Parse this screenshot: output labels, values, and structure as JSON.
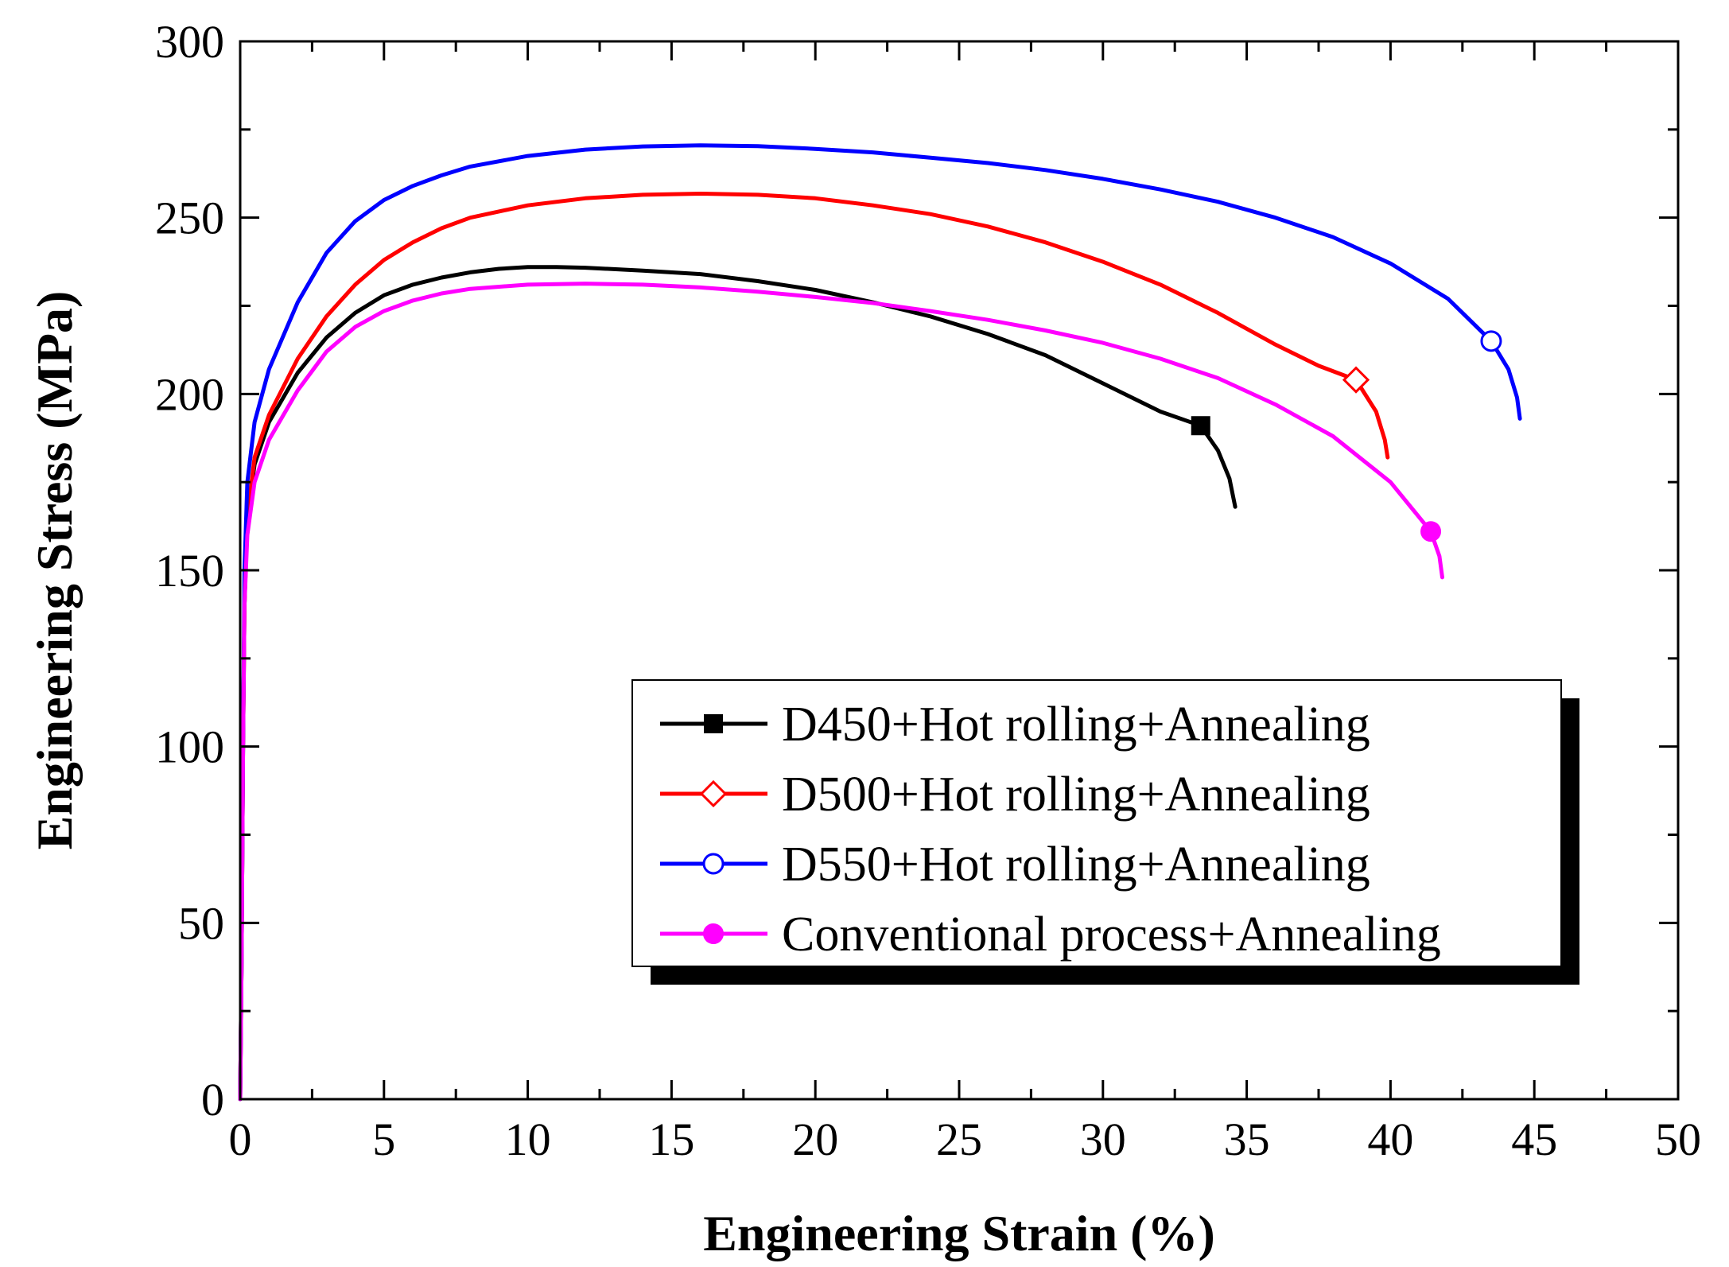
{
  "chart_data": {
    "type": "line",
    "title": "",
    "xlabel": "Engineering Strain (%)",
    "ylabel": "Engineering Stress (MPa)",
    "xlim": [
      0,
      50
    ],
    "ylim": [
      0,
      300
    ],
    "xticks": [
      0,
      5,
      10,
      15,
      20,
      25,
      30,
      35,
      40,
      45,
      50
    ],
    "yticks": [
      0,
      50,
      100,
      150,
      200,
      250,
      300
    ],
    "grid": false,
    "legend_position": "lower-right",
    "series": [
      {
        "name": "D450+Hot rolling+Annealing",
        "color": "#000000",
        "marker": "filled-square",
        "marker_point": [
          33.4,
          191
        ],
        "points": [
          [
            0,
            0
          ],
          [
            0.05,
            40
          ],
          [
            0.1,
            100
          ],
          [
            0.15,
            140
          ],
          [
            0.25,
            165
          ],
          [
            0.5,
            180
          ],
          [
            1,
            192
          ],
          [
            2,
            206
          ],
          [
            3,
            216
          ],
          [
            4,
            223
          ],
          [
            5,
            228
          ],
          [
            6,
            231
          ],
          [
            7,
            233
          ],
          [
            8,
            234.5
          ],
          [
            9,
            235.5
          ],
          [
            10,
            236
          ],
          [
            11,
            236
          ],
          [
            12,
            235.8
          ],
          [
            14,
            235
          ],
          [
            16,
            234
          ],
          [
            18,
            232
          ],
          [
            20,
            229.5
          ],
          [
            22,
            226
          ],
          [
            24,
            222
          ],
          [
            26,
            217
          ],
          [
            28,
            211
          ],
          [
            30,
            203
          ],
          [
            32,
            195
          ],
          [
            33.4,
            191
          ],
          [
            34,
            184
          ],
          [
            34.4,
            176
          ],
          [
            34.6,
            168
          ]
        ]
      },
      {
        "name": "D500+Hot rolling+Annealing",
        "color": "#ff0000",
        "marker": "open-diamond",
        "marker_point": [
          38.8,
          204
        ],
        "points": [
          [
            0,
            0
          ],
          [
            0.05,
            40
          ],
          [
            0.1,
            100
          ],
          [
            0.15,
            140
          ],
          [
            0.25,
            165
          ],
          [
            0.5,
            182
          ],
          [
            1,
            194
          ],
          [
            2,
            210
          ],
          [
            3,
            222
          ],
          [
            4,
            231
          ],
          [
            5,
            238
          ],
          [
            6,
            243
          ],
          [
            7,
            247
          ],
          [
            8,
            250
          ],
          [
            10,
            253.5
          ],
          [
            12,
            255.5
          ],
          [
            14,
            256.5
          ],
          [
            16,
            256.8
          ],
          [
            18,
            256.5
          ],
          [
            20,
            255.5
          ],
          [
            22,
            253.5
          ],
          [
            24,
            251
          ],
          [
            26,
            247.5
          ],
          [
            28,
            243
          ],
          [
            30,
            237.5
          ],
          [
            32,
            231
          ],
          [
            34,
            223
          ],
          [
            36,
            214
          ],
          [
            37.5,
            208
          ],
          [
            38.8,
            204
          ],
          [
            39.5,
            195
          ],
          [
            39.8,
            187
          ],
          [
            39.9,
            182
          ]
        ]
      },
      {
        "name": "D550+Hot rolling+Annealing",
        "color": "#0000ff",
        "marker": "open-circle",
        "marker_point": [
          43.5,
          215
        ],
        "points": [
          [
            0,
            0
          ],
          [
            0.05,
            40
          ],
          [
            0.1,
            100
          ],
          [
            0.15,
            150
          ],
          [
            0.25,
            175
          ],
          [
            0.5,
            192
          ],
          [
            1,
            207
          ],
          [
            2,
            226
          ],
          [
            3,
            240
          ],
          [
            4,
            249
          ],
          [
            5,
            255
          ],
          [
            6,
            259
          ],
          [
            7,
            262
          ],
          [
            8,
            264.5
          ],
          [
            10,
            267.5
          ],
          [
            12,
            269.3
          ],
          [
            14,
            270.2
          ],
          [
            16,
            270.5
          ],
          [
            18,
            270.3
          ],
          [
            20,
            269.5
          ],
          [
            22,
            268.5
          ],
          [
            24,
            267
          ],
          [
            26,
            265.5
          ],
          [
            28,
            263.5
          ],
          [
            30,
            261
          ],
          [
            32,
            258
          ],
          [
            34,
            254.5
          ],
          [
            36,
            250
          ],
          [
            38,
            244.5
          ],
          [
            40,
            237
          ],
          [
            42,
            227
          ],
          [
            43.5,
            215
          ],
          [
            44.1,
            207
          ],
          [
            44.4,
            199
          ],
          [
            44.5,
            193
          ]
        ]
      },
      {
        "name": "Conventional process+Annealing",
        "color": "#ff00ff",
        "marker": "filled-circle",
        "marker_point": [
          41.4,
          161
        ],
        "points": [
          [
            0,
            0
          ],
          [
            0.05,
            40
          ],
          [
            0.1,
            100
          ],
          [
            0.15,
            140
          ],
          [
            0.25,
            160
          ],
          [
            0.5,
            175
          ],
          [
            1,
            187
          ],
          [
            2,
            201
          ],
          [
            3,
            212
          ],
          [
            4,
            219
          ],
          [
            5,
            223.5
          ],
          [
            6,
            226.5
          ],
          [
            7,
            228.5
          ],
          [
            8,
            229.8
          ],
          [
            10,
            231
          ],
          [
            12,
            231.3
          ],
          [
            14,
            231
          ],
          [
            16,
            230.2
          ],
          [
            18,
            229
          ],
          [
            20,
            227.5
          ],
          [
            22,
            225.8
          ],
          [
            24,
            223.5
          ],
          [
            26,
            221
          ],
          [
            28,
            218
          ],
          [
            30,
            214.5
          ],
          [
            32,
            210
          ],
          [
            34,
            204.5
          ],
          [
            36,
            197
          ],
          [
            38,
            188
          ],
          [
            40,
            175
          ],
          [
            41.4,
            161
          ],
          [
            41.7,
            154
          ],
          [
            41.8,
            148
          ]
        ]
      }
    ]
  }
}
